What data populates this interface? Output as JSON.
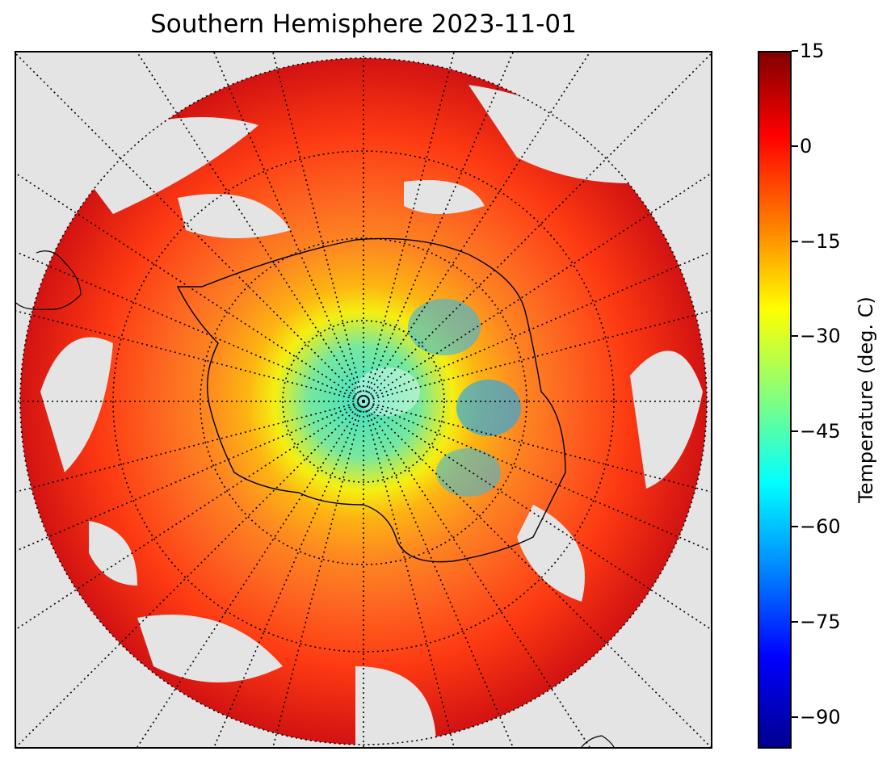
{
  "title": "Southern Hemisphere 2023-11-01",
  "map": {
    "projection": "south-polar-stereographic",
    "background_color": "#e4e4e4",
    "graticule": "dotted",
    "coastline": "black outline"
  },
  "colorbar": {
    "label": "Temperature (deg. C)",
    "colormap": "jet",
    "min": -95,
    "max": 15,
    "ticks": [
      15,
      0,
      -15,
      -30,
      -45,
      -60,
      -75,
      -90
    ],
    "tick_labels": [
      "15",
      "0",
      "−15",
      "−30",
      "−45",
      "−60",
      "−75",
      "−90"
    ]
  }
}
